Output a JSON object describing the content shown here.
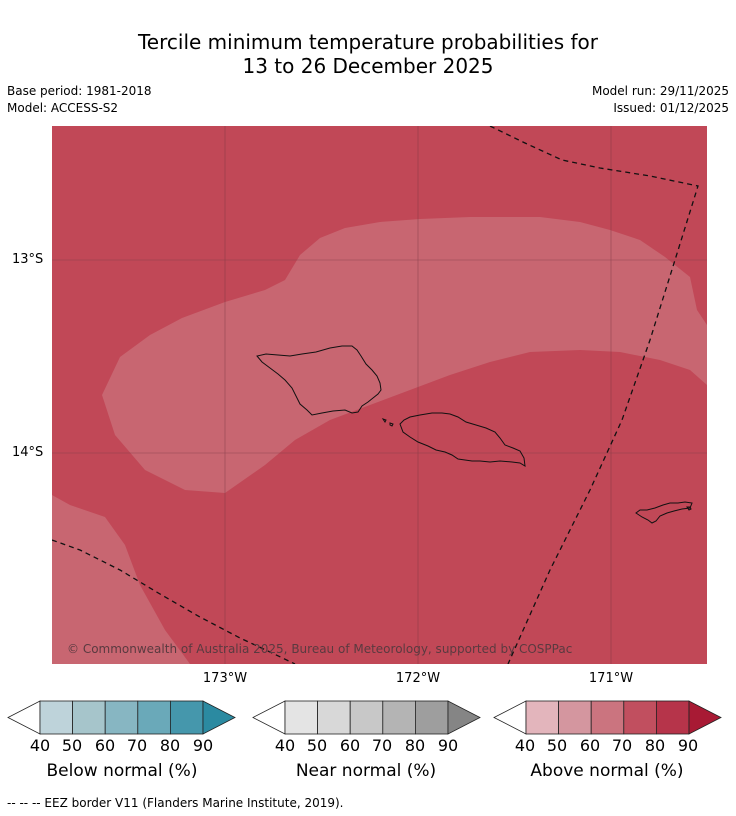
{
  "title": {
    "line1": "Tercile minimum temperature probabilities for",
    "line2": "13 to 26 December 2025"
  },
  "meta": {
    "base_period": "Base period: 1981-2018",
    "model": "Model: ACCESS-S2",
    "model_run": "Model run: 29/11/2025",
    "issued": "Issued: 01/12/2025"
  },
  "map": {
    "lat_labels": [
      "13°S",
      "14°S"
    ],
    "lon_labels": [
      "173°W",
      "172°W",
      "171°W"
    ],
    "copyright": "© Commonwealth of Australia 2025, Bureau of Meteorology, supported by COSPPac",
    "colors": {
      "above_80": "#c14857",
      "above_70": "#c86671",
      "coast": "#111111",
      "grid": "#7a3a44",
      "eez": "#111111"
    }
  },
  "legends": {
    "ticks": [
      "40",
      "50",
      "60",
      "70",
      "80",
      "90"
    ],
    "below": {
      "title": "Below normal (%)",
      "colors": [
        "#ffffff",
        "#bed3da",
        "#a6c5cb",
        "#87b6c2",
        "#6aa9b9",
        "#4597ac",
        "#2b8aa1"
      ]
    },
    "near": {
      "title": "Near normal (%)",
      "colors": [
        "#ffffff",
        "#e4e4e4",
        "#d8d8d8",
        "#c8c8c8",
        "#b4b4b4",
        "#9e9e9e",
        "#858585"
      ]
    },
    "above": {
      "title": "Above normal (%)",
      "colors": [
        "#ffffff",
        "#e3b5bc",
        "#d4969f",
        "#cb747f",
        "#c14f5f",
        "#b6344a",
        "#a81a34"
      ]
    }
  },
  "footer": "--  --  -- EEZ border V11 (Flanders Marine Institute, 2019)."
}
